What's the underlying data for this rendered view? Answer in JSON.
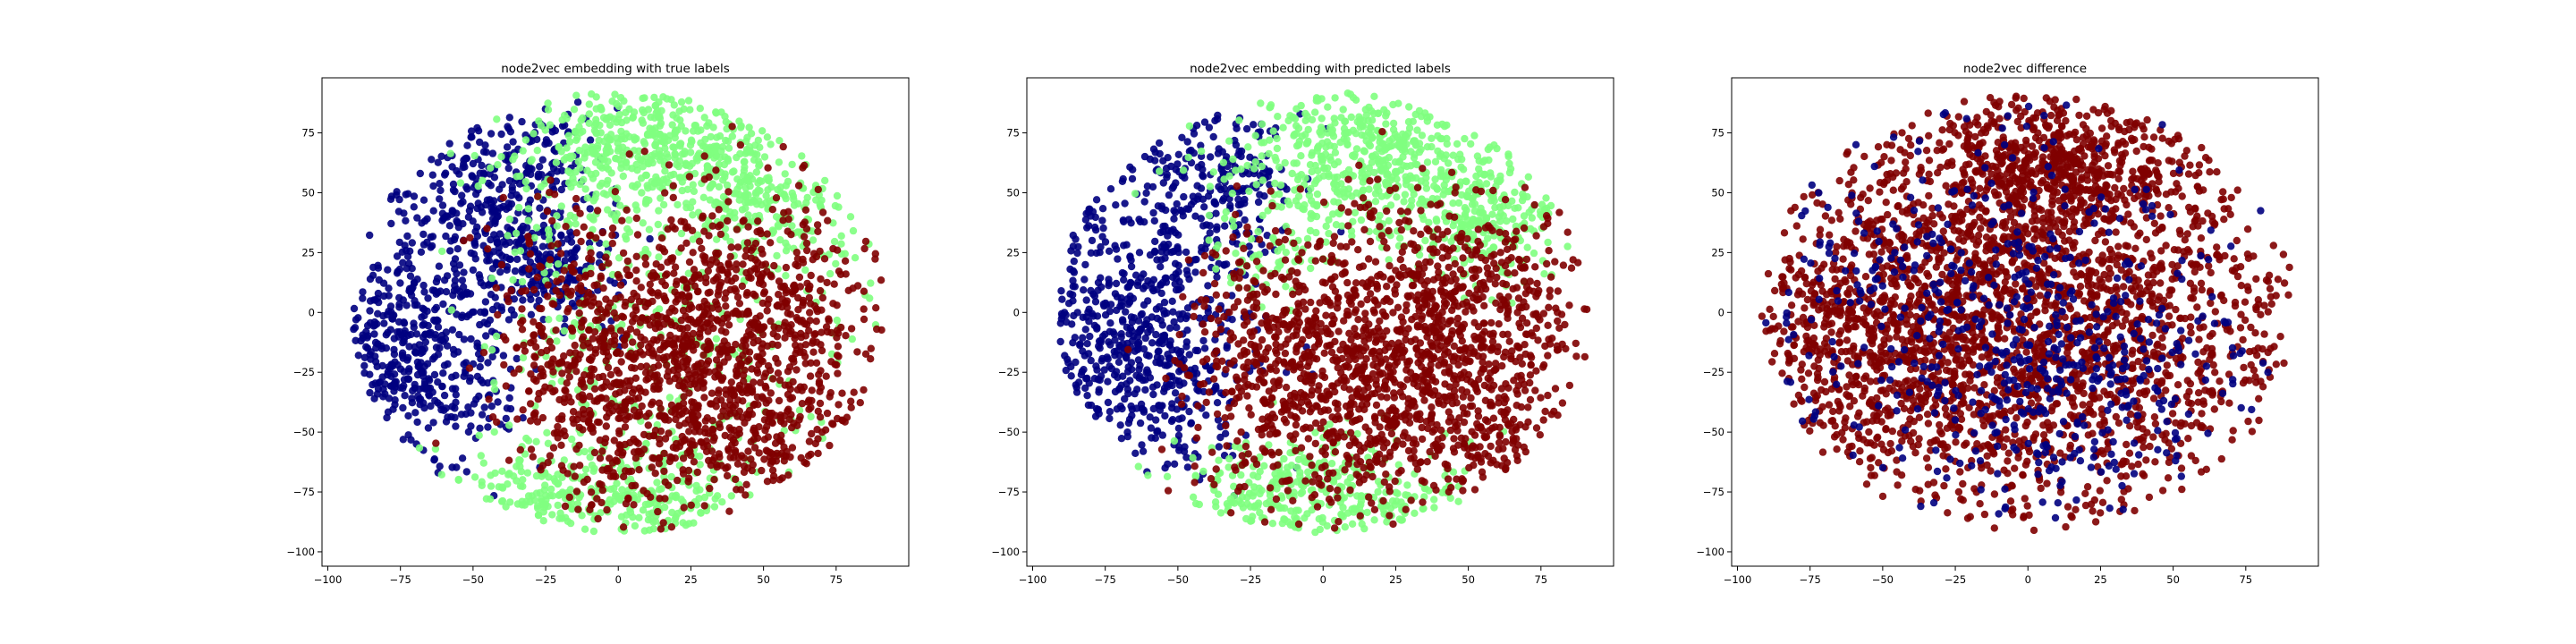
{
  "figure": {
    "colors": {
      "class_0": "#000080",
      "class_1": "#80ff80",
      "class_2": "#800000",
      "axes": "#000000",
      "background": "#ffffff"
    }
  },
  "chart_data": [
    {
      "type": "scatter",
      "title": "node2vec embedding with true labels",
      "xlabel": "",
      "ylabel": "",
      "xlim": [
        -102,
        100
      ],
      "ylim": [
        -106,
        98
      ],
      "xticks": [
        "−100",
        "−75",
        "−50",
        "−25",
        "0",
        "25",
        "50",
        "75"
      ],
      "yticks": [
        "−100",
        "−75",
        "−50",
        "−25",
        "0",
        "25",
        "50",
        "75"
      ],
      "grid": false,
      "series": [
        {
          "color": "#000080",
          "clusters": [
            [
              -70,
              -20,
              16,
              24,
              520
            ],
            [
              -45,
              35,
              14,
              18,
              260
            ],
            [
              -30,
              65,
              12,
              12,
              120
            ],
            [
              -80,
              55,
              6,
              6,
              30
            ],
            [
              -20,
              20,
              10,
              12,
              140
            ]
          ]
        },
        {
          "color": "#80ff80",
          "clusters": [
            [
              10,
              70,
              22,
              14,
              460
            ],
            [
              50,
              45,
              18,
              16,
              260
            ],
            [
              -25,
              -75,
              18,
              12,
              220
            ],
            [
              15,
              -80,
              14,
              10,
              160
            ],
            [
              -10,
              20,
              20,
              30,
              150
            ],
            [
              30,
              -30,
              35,
              25,
              150
            ]
          ]
        },
        {
          "color": "#800000",
          "clusters": [
            [
              35,
              -5,
              28,
              26,
              950
            ],
            [
              5,
              -45,
              22,
              22,
              330
            ],
            [
              -15,
              -5,
              15,
              25,
              160
            ],
            [
              50,
              -55,
              18,
              16,
              220
            ]
          ]
        }
      ]
    },
    {
      "type": "scatter",
      "title": "node2vec embedding with predicted labels",
      "xlabel": "",
      "ylabel": "",
      "xlim": [
        -102,
        100
      ],
      "ylim": [
        -106,
        98
      ],
      "xticks": [
        "−100",
        "−75",
        "−50",
        "−25",
        "0",
        "25",
        "50",
        "75"
      ],
      "yticks": [
        "−100",
        "−75",
        "−50",
        "−25",
        "0",
        "25",
        "50",
        "75"
      ],
      "grid": false,
      "series": [
        {
          "color": "#000080",
          "clusters": [
            [
              -65,
              -15,
              20,
              28,
              700
            ],
            [
              -40,
              55,
              16,
              18,
              260
            ],
            [
              -85,
              40,
              6,
              8,
              40
            ]
          ]
        },
        {
          "color": "#80ff80",
          "clusters": [
            [
              15,
              65,
              24,
              16,
              560
            ],
            [
              55,
              40,
              16,
              14,
              240
            ],
            [
              -15,
              -75,
              20,
              12,
              280
            ],
            [
              25,
              -80,
              14,
              10,
              120
            ],
            [
              -20,
              20,
              10,
              10,
              60
            ]
          ]
        },
        {
          "color": "#800000",
          "clusters": [
            [
              35,
              -5,
              28,
              26,
              1000
            ],
            [
              0,
              -40,
              24,
              22,
              420
            ],
            [
              -20,
              -5,
              12,
              22,
              140
            ],
            [
              50,
              -55,
              18,
              16,
              220
            ]
          ]
        }
      ]
    },
    {
      "type": "scatter",
      "title": "node2vec difference",
      "xlabel": "",
      "ylabel": "",
      "xlim": [
        -102,
        100
      ],
      "ylim": [
        -106,
        98
      ],
      "xticks": [
        "−100",
        "−75",
        "−50",
        "−25",
        "0",
        "25",
        "50",
        "75"
      ],
      "yticks": [
        "−100",
        "−75",
        "−50",
        "−25",
        "0",
        "25",
        "50",
        "75"
      ],
      "grid": false,
      "series": [
        {
          "color": "#800000",
          "clusters": [
            [
              0,
              0,
              45,
              45,
              2600
            ],
            [
              10,
              60,
              25,
              15,
              500
            ],
            [
              -60,
              -10,
              20,
              25,
              400
            ]
          ]
        },
        {
          "color": "#000080",
          "clusters": [
            [
              -20,
              10,
              45,
              40,
              450
            ],
            [
              20,
              -35,
              30,
              25,
              200
            ]
          ]
        }
      ]
    }
  ]
}
